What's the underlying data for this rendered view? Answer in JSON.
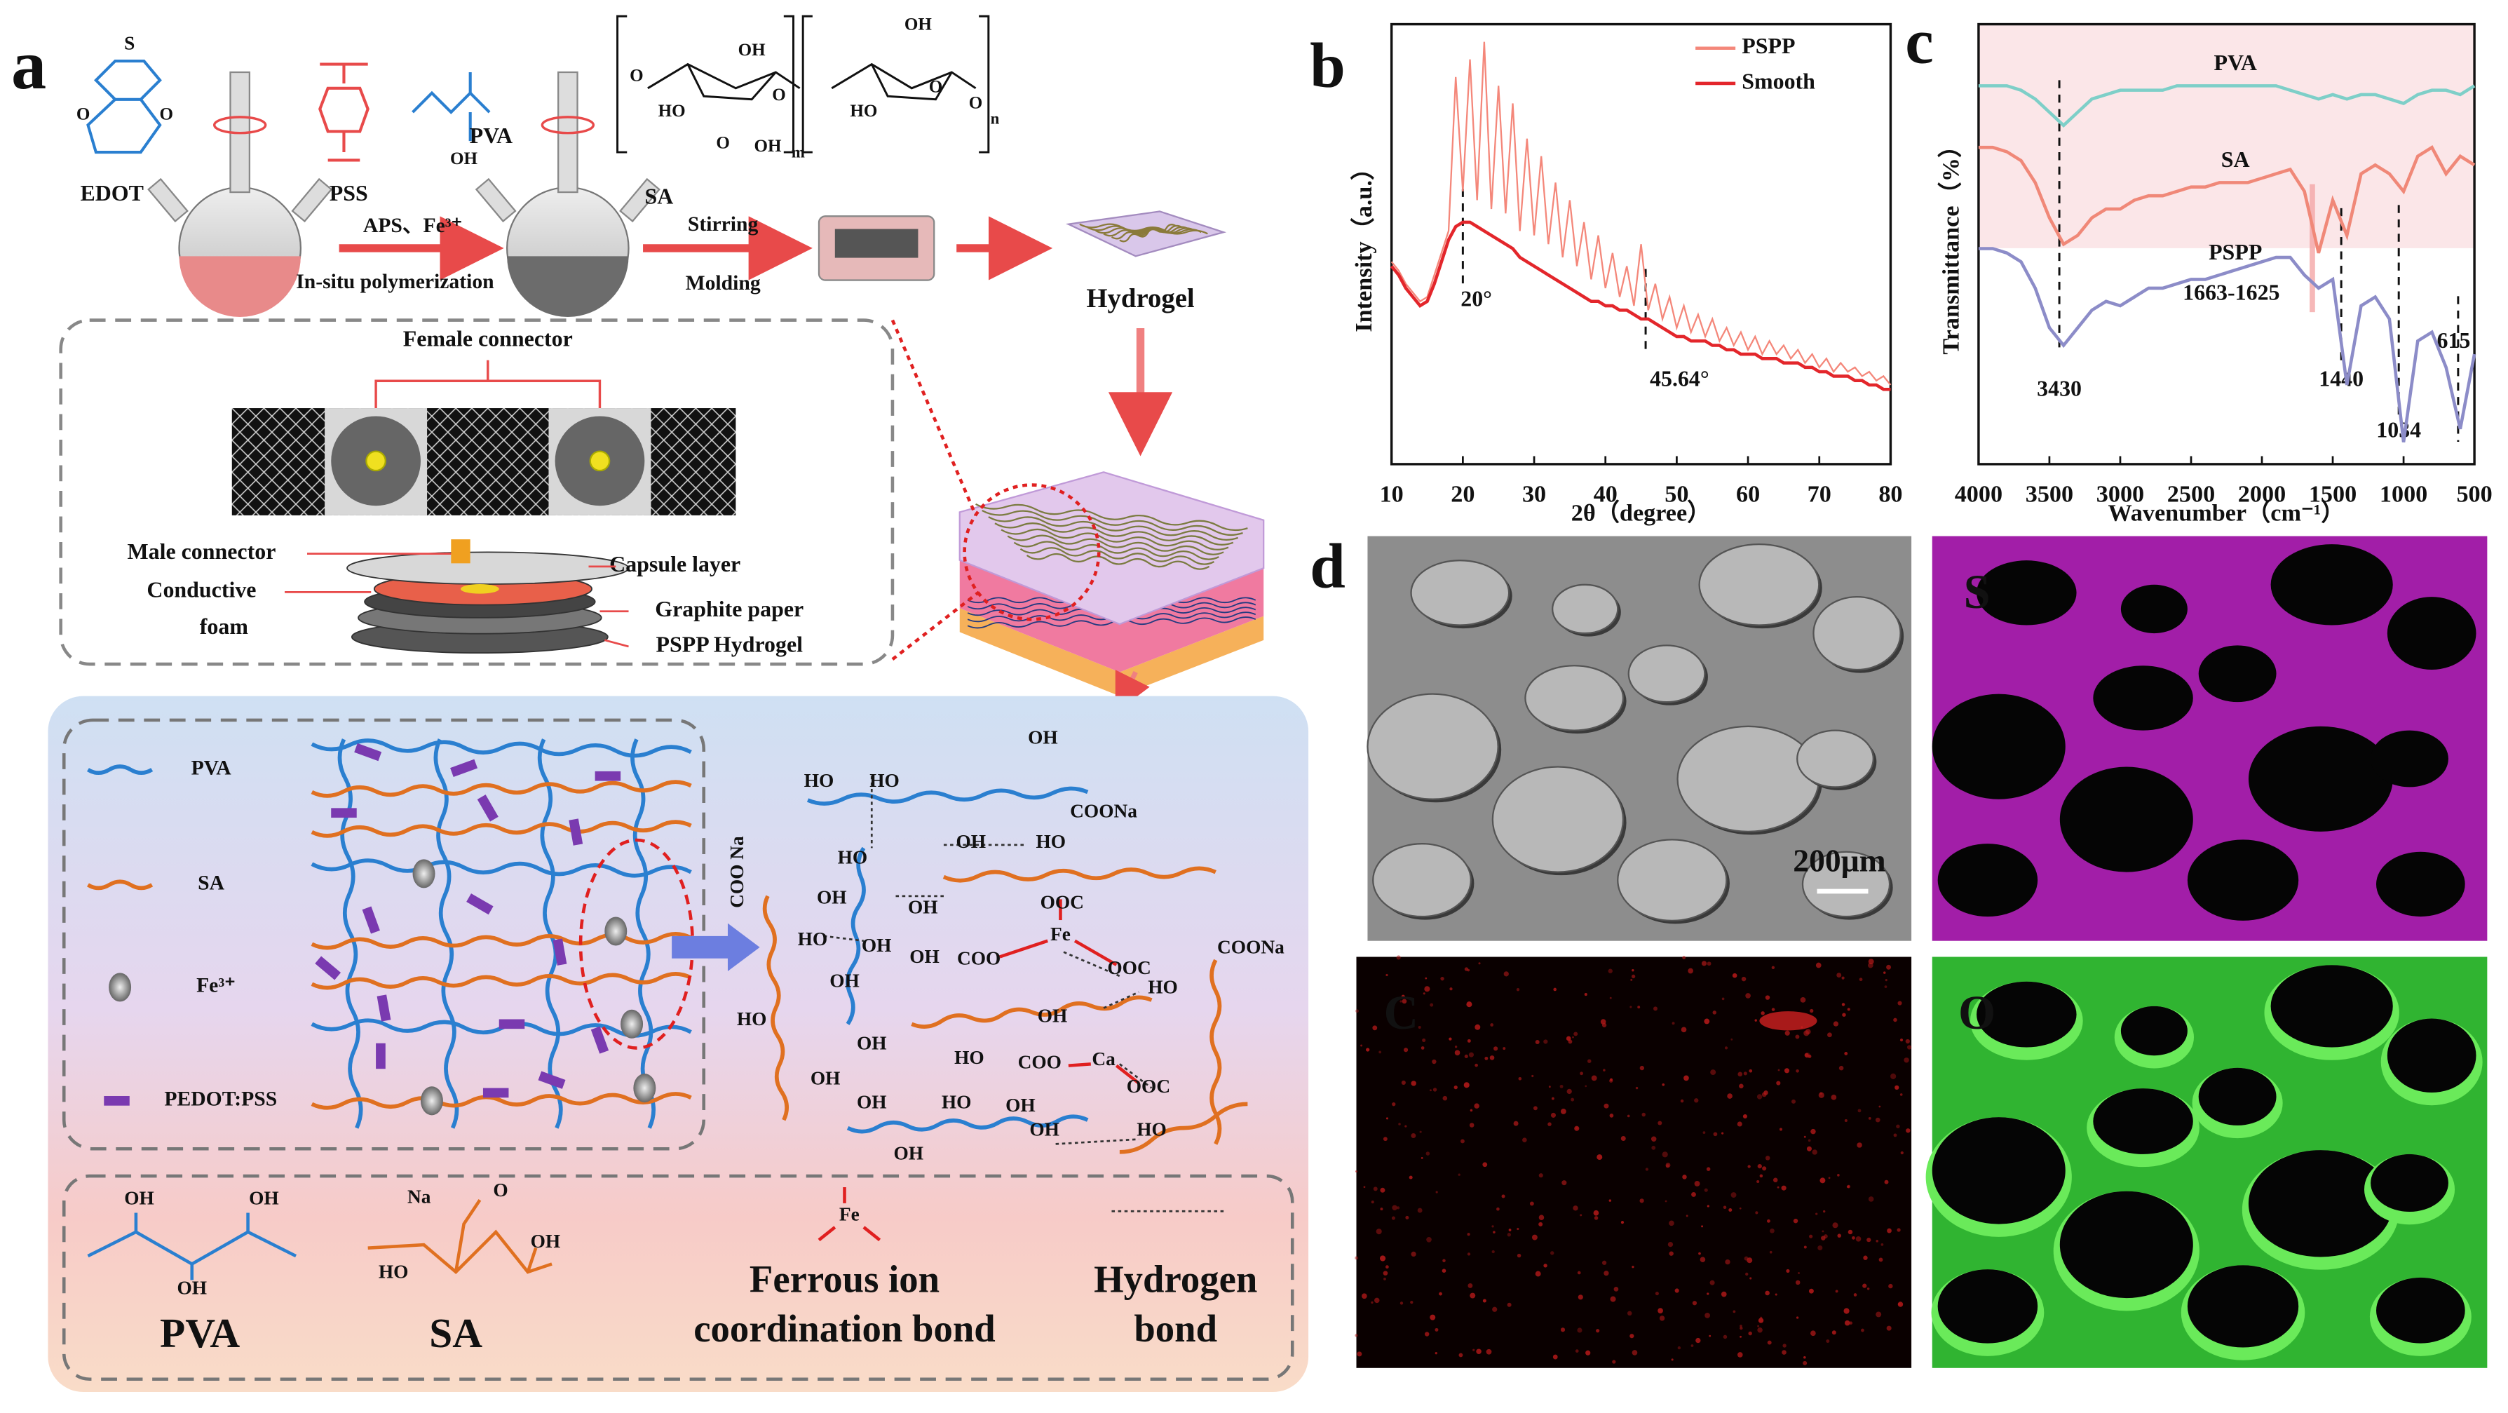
{
  "panel_labels": [
    "a",
    "b",
    "c",
    "d"
  ],
  "panel_a": {
    "synthesis": {
      "edot": "EDOT",
      "pss": "PSS",
      "pva": "PVA",
      "sa": "SA",
      "step1": "APS、Fe³⁺",
      "step1_note": "In-situ polymerization",
      "step2": "Stirring",
      "step2_note": "Molding",
      "product": "Hydrogel",
      "edot_atoms": [
        "S",
        "O",
        "O"
      ],
      "pva_group": "OH",
      "sa_groups": [
        "O",
        "OH",
        "HO",
        "O",
        "OH",
        "HO",
        "O",
        "O",
        "O",
        "OH",
        "m",
        "n"
      ]
    },
    "device": {
      "female": "Female connector",
      "male": "Male connector",
      "capsule": "Capsule layer",
      "foam": [
        "Conductive",
        "foam"
      ],
      "graphite": "Graphite paper",
      "hydrogel": "PSPP Hydrogel"
    },
    "network": {
      "legend": [
        "PVA",
        "SA",
        "Fe³⁺",
        "PEDOT:PSS"
      ],
      "molecule": [
        "OH",
        "HO",
        "HO",
        "COONa",
        "OH",
        "HO",
        "COO Na",
        "HO",
        "OOC",
        "OH",
        "OH",
        "COO",
        "Fe",
        "OOC",
        "HO",
        "OH",
        "COONa",
        "OH",
        "OH",
        "HO",
        "HO",
        "OH",
        "OH",
        "HO",
        "COO",
        "Ca",
        "OOC",
        "OH",
        "OH",
        "HO",
        "OH",
        "HO",
        "OH",
        "OH"
      ]
    },
    "bonds": {
      "pva": "PVA",
      "sa": "SA",
      "ferrous": [
        "Ferrous ion",
        "coordination bond"
      ],
      "hydrogen": [
        "Hydrogen",
        "bond"
      ],
      "pva_groups": [
        "OH",
        "OH",
        "OH"
      ],
      "sa_groups": [
        "Na",
        "O",
        "OH",
        "HO"
      ],
      "fe": "Fe"
    }
  },
  "chart_data": [
    {
      "type": "line",
      "xlabel": "2θ（degree）",
      "ylabel": "Intensity（a.u.）",
      "x": [
        10,
        11,
        12,
        13,
        14,
        15,
        16,
        17,
        18,
        19,
        20,
        21,
        22,
        23,
        24,
        25,
        26,
        27,
        28,
        29,
        30,
        31,
        32,
        33,
        34,
        35,
        36,
        37,
        38,
        39,
        40,
        41,
        42,
        43,
        44,
        45,
        46,
        47,
        48,
        49,
        50,
        51,
        52,
        53,
        54,
        55,
        56,
        57,
        58,
        59,
        60,
        61,
        62,
        63,
        64,
        65,
        66,
        67,
        68,
        69,
        70,
        71,
        72,
        73,
        74,
        75,
        76,
        77,
        78,
        79,
        80
      ],
      "series": [
        {
          "name": "PSPP",
          "color": "#f4877a",
          "values": [
            46,
            44,
            41,
            39,
            37,
            38,
            43,
            48,
            53,
            88,
            62,
            92,
            60,
            96,
            58,
            86,
            57,
            82,
            53,
            74,
            52,
            70,
            50,
            64,
            47,
            60,
            45,
            55,
            42,
            52,
            40,
            48,
            38,
            45,
            36,
            50,
            35,
            41,
            33,
            38,
            31,
            36,
            30,
            34,
            29,
            33,
            28,
            31,
            27,
            30,
            26,
            29,
            25,
            28,
            25,
            27,
            24,
            26,
            23,
            25,
            22,
            24,
            21,
            23,
            21,
            22,
            20,
            21,
            19,
            20,
            18
          ]
        },
        {
          "name": "Smooth",
          "color": "#e3262b",
          "values": [
            45,
            43,
            40,
            38,
            36,
            37,
            41,
            46,
            51,
            54,
            55,
            55,
            54,
            53,
            52,
            51,
            50,
            49,
            47,
            46,
            45,
            44,
            43,
            42,
            41,
            40,
            39,
            38,
            37,
            37,
            36,
            36,
            35,
            35,
            34,
            33,
            33,
            32,
            31,
            30,
            29,
            29,
            28,
            28,
            28,
            27,
            27,
            26,
            26,
            25,
            25,
            25,
            24,
            24,
            24,
            23,
            23,
            23,
            22,
            22,
            21,
            21,
            20,
            20,
            20,
            19,
            19,
            18,
            18,
            17,
            17
          ]
        }
      ],
      "xlim": [
        10,
        80
      ],
      "xticks": [
        10,
        20,
        30,
        40,
        50,
        60,
        70,
        80
      ],
      "ylim": [
        0,
        100
      ],
      "legend": "upper right",
      "annotations": [
        {
          "label": "20°",
          "x": 20
        },
        {
          "label": "45.64°",
          "x": 45.64
        }
      ]
    },
    {
      "type": "line",
      "xlabel": "Wavenumber（cm⁻¹）",
      "ylabel": "Transmittance（%）",
      "x": [
        4000,
        3900,
        3800,
        3700,
        3600,
        3500,
        3400,
        3300,
        3200,
        3100,
        3000,
        2900,
        2800,
        2700,
        2600,
        2500,
        2400,
        2300,
        2200,
        2100,
        2000,
        1900,
        1800,
        1700,
        1600,
        1500,
        1400,
        1300,
        1200,
        1100,
        1000,
        900,
        800,
        700,
        600,
        500
      ],
      "series": [
        {
          "name": "PVA",
          "color": "#7ecfc8",
          "values": [
            86,
            86,
            86,
            85,
            83,
            80,
            77,
            80,
            83,
            84,
            85,
            85,
            85,
            85,
            86,
            86,
            86,
            86,
            86,
            86,
            86,
            86,
            85,
            84,
            83,
            84,
            83,
            84,
            84,
            83,
            82,
            84,
            85,
            85,
            84,
            86
          ]
        },
        {
          "name": "SA",
          "color": "#f08878",
          "values": [
            72,
            72,
            71,
            69,
            64,
            56,
            50,
            52,
            56,
            58,
            58,
            60,
            61,
            61,
            62,
            63,
            63,
            64,
            64,
            64,
            65,
            66,
            67,
            62,
            48,
            60,
            52,
            66,
            68,
            66,
            62,
            70,
            72,
            66,
            70,
            68
          ]
        },
        {
          "name": "PSPP",
          "color": "#8c8cc8",
          "values": [
            49,
            49,
            48,
            46,
            40,
            31,
            27,
            31,
            35,
            37,
            36,
            38,
            40,
            40,
            41,
            42,
            42,
            43,
            44,
            45,
            46,
            47,
            47,
            43,
            40,
            42,
            18,
            36,
            38,
            33,
            5,
            28,
            30,
            22,
            8,
            25
          ]
        }
      ],
      "xlim": [
        4000,
        500
      ],
      "xticks": [
        4000,
        3500,
        3000,
        2500,
        2000,
        1500,
        1000,
        500
      ],
      "ylim": [
        0,
        100
      ],
      "annotations": [
        {
          "label": "3430",
          "x": 3430
        },
        {
          "label": "1663-1625",
          "x": [
            1663,
            1625
          ]
        },
        {
          "label": "1440",
          "x": 1440
        },
        {
          "label": "1034",
          "x": 1034
        },
        {
          "label": "615",
          "x": 615
        }
      ]
    }
  ],
  "panel_d": {
    "scale_bar": "200μm",
    "maps": [
      "S",
      "C",
      "O"
    ]
  }
}
